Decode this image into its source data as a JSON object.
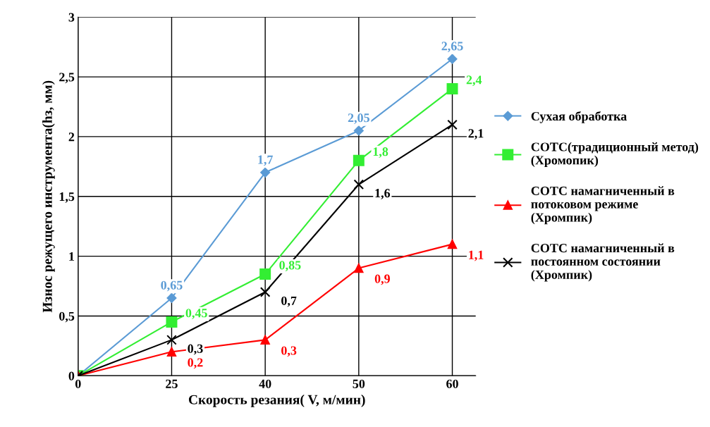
{
  "chart_data": {
    "type": "line",
    "xlabel": "Скорость резания( V, м/мин)",
    "ylabel": "Износ режущего инструмента(hз, мм)",
    "categories": [
      "0",
      "25",
      "40",
      "50",
      "60"
    ],
    "ylim": [
      0,
      3
    ],
    "yticks": [
      0,
      {
        "value": 0.5,
        "label": "0,5"
      },
      1,
      {
        "value": 1.5,
        "label": "1,5"
      },
      2,
      {
        "value": 2.5,
        "label": "2,5"
      },
      3
    ],
    "grid": true,
    "legend": "right",
    "series": [
      {
        "name": "Сухая обработка",
        "color": "#5b9bd5",
        "marker": "diamond",
        "values": [
          0,
          0.65,
          1.7,
          2.05,
          2.65
        ],
        "value_labels": [
          null,
          "0,65",
          "1,7",
          "2,05",
          "2,65"
        ]
      },
      {
        "name": "СОТС(традиционный метод)\n(Хромопик)",
        "color": "#33ee33",
        "marker": "square",
        "values": [
          0,
          0.45,
          0.85,
          1.8,
          2.4
        ],
        "value_labels": [
          null,
          "0,45",
          "0,85",
          "1,8",
          "2,4"
        ]
      },
      {
        "name": "СОТС намагниченный в\nпотоковом режиме\n(Хромпик)",
        "color": "#ff0000",
        "marker": "triangle",
        "values": [
          0,
          0.2,
          0.3,
          0.9,
          1.1
        ],
        "value_labels": [
          null,
          "0,2",
          "0,3",
          "0,9",
          "1,1"
        ]
      },
      {
        "name": "СОТС намагниченный в\nпостоянном состоянии\n(Хромпик)",
        "color": "#000000",
        "marker": "cross",
        "values": [
          0,
          0.3,
          0.7,
          1.6,
          2.1
        ],
        "value_labels": [
          null,
          "0,3",
          "0,7",
          "1,6",
          "2,1"
        ]
      }
    ]
  }
}
